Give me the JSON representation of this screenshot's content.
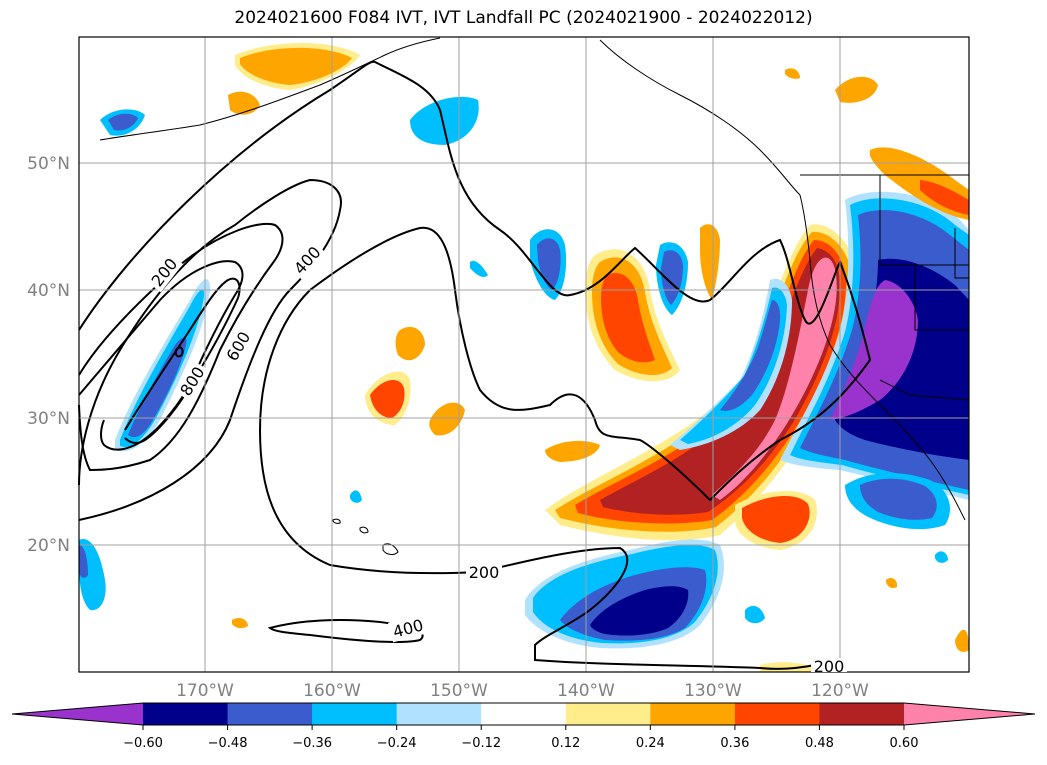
{
  "title": "2024021600 F084 IVT, IVT Landfall PC (2024021900 - 2024022012)",
  "lat_labels": [
    "50°N",
    "40°N",
    "30°N",
    "20°N"
  ],
  "lon_labels": [
    "170°W",
    "160°W",
    "150°W",
    "140°W",
    "130°W",
    "120°W"
  ],
  "contour_labels": [
    "200",
    "400",
    "600",
    "800",
    "400",
    "200",
    "400",
    "200"
  ],
  "colorbar": {
    "ticks": [
      "−0.60",
      "−0.48",
      "−0.36",
      "−0.24",
      "−0.12",
      "0.12",
      "0.24",
      "0.36",
      "0.48",
      "0.60"
    ],
    "colors": [
      "#9a32cd",
      "#00008b",
      "#3a5ccc",
      "#00bfff",
      "#b0e2ff",
      "#ffffff",
      "#ffec8b",
      "#ffa500",
      "#ff4500",
      "#b22222",
      "#ff82ab"
    ]
  },
  "colors": {
    "purple": "#9a32cd",
    "navy": "#00008b",
    "royal_blue": "#3a5ccc",
    "deep_sky_blue": "#00bfff",
    "light_blue": "#b0e2ff",
    "light_yellow": "#ffec8b",
    "orange": "#ffa500",
    "orange_red": "#ff4500",
    "firebrick": "#b22222",
    "pink": "#ff82ab"
  }
}
